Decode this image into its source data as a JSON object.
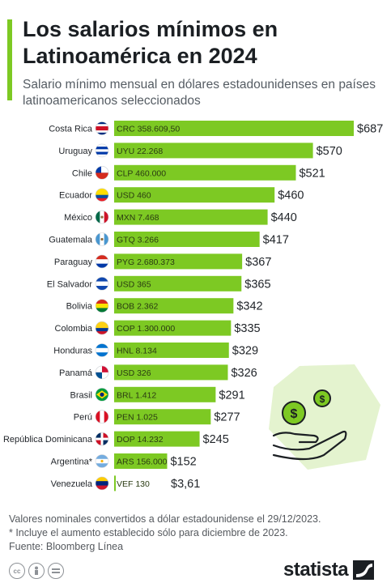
{
  "header": {
    "title": "Los salarios mínimos en Latinoamérica en 2024",
    "subtitle": "Salario mínimo mensual en dólares estadounidenses en países latinoamericanos seleccionados"
  },
  "colors": {
    "accent": "#7dc923",
    "bar": "#7dc923",
    "bar_text": "#2a3b12"
  },
  "chart_data": {
    "type": "bar",
    "orientation": "horizontal",
    "categories": [
      "Costa Rica",
      "Uruguay",
      "Chile",
      "Ecuador",
      "México",
      "Guatemala",
      "Paraguay",
      "El Salvador",
      "Bolivia",
      "Colombia",
      "Honduras",
      "Panamá",
      "Brasil",
      "Perú",
      "República Dominicana",
      "Argentina*",
      "Venezuela"
    ],
    "values": [
      687,
      570,
      521,
      460,
      440,
      417,
      367,
      365,
      342,
      335,
      329,
      326,
      291,
      277,
      245,
      152,
      3.61
    ],
    "value_labels": [
      "$687",
      "$570",
      "$521",
      "$460",
      "$440",
      "$417",
      "$367",
      "$365",
      "$342",
      "$335",
      "$329",
      "$326",
      "$291",
      "$277",
      "$245",
      "$152",
      "$3,61"
    ],
    "local_labels": [
      "CRC 358.609,50",
      "UYU 22.268",
      "CLP 460.000",
      "USD 460",
      "MXN 7.468",
      "GTQ 3.266",
      "PYG 2.680.373",
      "USD 365",
      "BOB 2.362",
      "COP 1.300.000",
      "HNL 8.134",
      "USD 326",
      "BRL 1.412",
      "PEN 1.025",
      "DOP 14.232",
      "ARS 156.000",
      "VEF 130"
    ],
    "flags": [
      "costa-rica-flag",
      "uruguay-flag",
      "chile-flag",
      "ecuador-flag",
      "mexico-flag",
      "guatemala-flag",
      "paraguay-flag",
      "el-salvador-flag",
      "bolivia-flag",
      "colombia-flag",
      "honduras-flag",
      "panama-flag",
      "brazil-flag",
      "peru-flag",
      "dominican-republic-flag",
      "argentina-flag",
      "venezuela-flag"
    ],
    "xlim": [
      0,
      687
    ],
    "grid": false,
    "legend": "none"
  },
  "footer": {
    "note1": "Valores nominales convertidos a dólar estadounidense el 29/12/2023.",
    "note2": "* Incluye el aumento establecido sólo para diciembre de 2023.",
    "source": "Fuente: Bloomberg Línea",
    "brand": "statista",
    "cc_icons": [
      "cc-icon",
      "attribution-icon",
      "equal-icon"
    ]
  }
}
